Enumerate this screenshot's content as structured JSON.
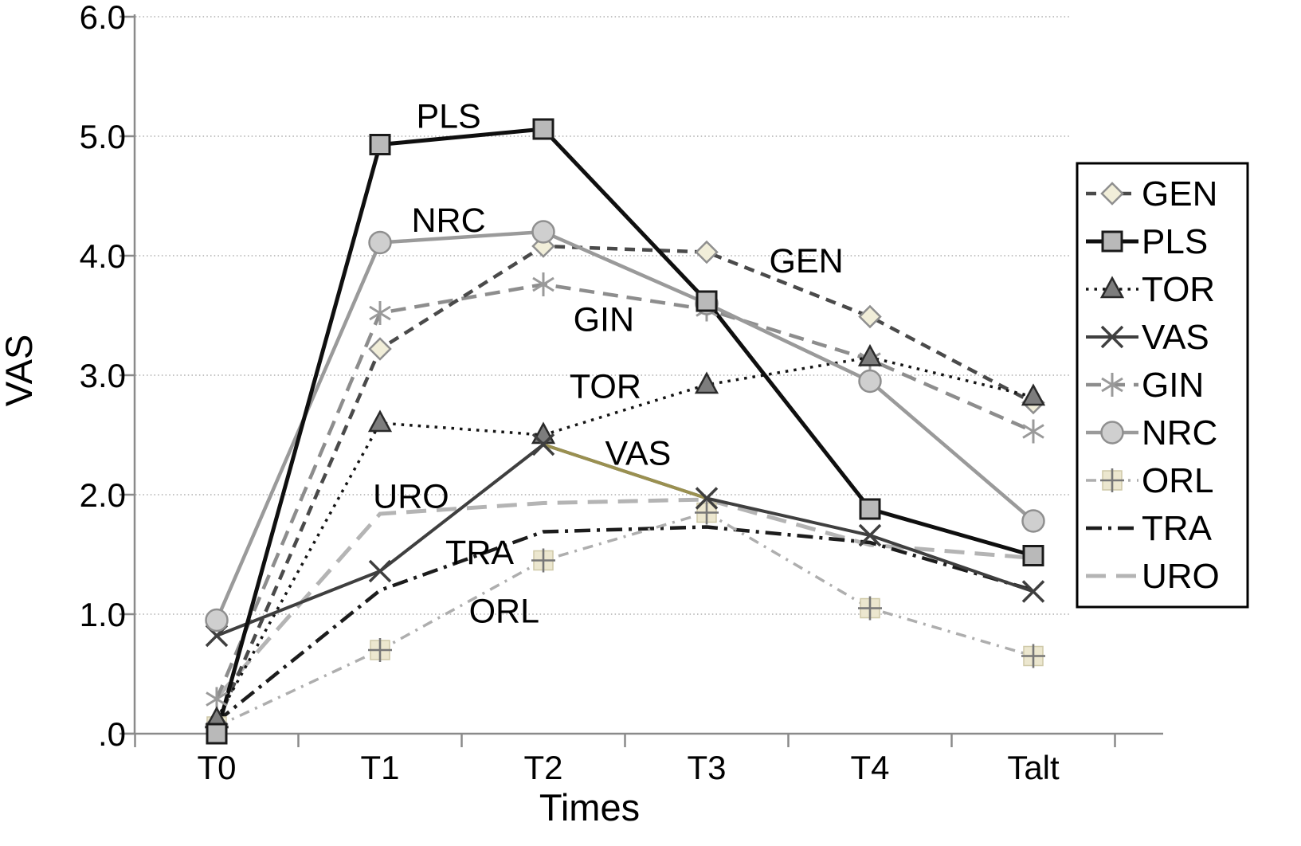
{
  "figure": {
    "ylabel": "VAS",
    "xlabel": "Times"
  },
  "chart_data": {
    "type": "line",
    "categories": [
      "T0",
      "T1",
      "T2",
      "T3",
      "T4",
      "Talt"
    ],
    "y_tick_labels": [
      "6.0",
      "5.0",
      "4.0",
      "3.0",
      "2.0",
      "1.0",
      ".0"
    ],
    "ylim": [
      0,
      6
    ],
    "grid": "horizontal dotted",
    "legend_position": "right",
    "title": "",
    "xlabel": "Times",
    "ylabel": "VAS",
    "series": [
      {
        "name": "GEN",
        "values": [
          0.08,
          3.22,
          4.08,
          4.03,
          3.49,
          2.77
        ],
        "color": "#4a4a4a",
        "dash": "13 9",
        "width": 4.5,
        "marker": "diamond",
        "marker_fill": "#f1eed9",
        "marker_stroke": "#8f8f8f"
      },
      {
        "name": "PLS",
        "values": [
          0.0,
          4.93,
          5.06,
          3.62,
          1.88,
          1.49
        ],
        "color": "#0f0f0f",
        "dash": "",
        "width": 5,
        "marker": "square",
        "marker_fill": "#b9b9b9",
        "marker_stroke": "#1a1a1a"
      },
      {
        "name": "TOR",
        "values": [
          0.12,
          2.6,
          2.5,
          2.92,
          3.15,
          2.82
        ],
        "color": "#141414",
        "dash": "3.5 7",
        "width": 3.5,
        "marker": "triangle",
        "marker_fill": "#7d7d7d",
        "marker_stroke": "#2a2a2a"
      },
      {
        "name": "VAS",
        "values": [
          0.82,
          1.36,
          2.42,
          1.97,
          1.66,
          1.19
        ],
        "color": "#3f3f3f",
        "dash": "",
        "width": 4,
        "marker": "x",
        "marker_fill": "none",
        "marker_stroke": "#3f3f3f",
        "highlight_segment": {
          "from": 2,
          "to": 3,
          "color": "#9a9050"
        }
      },
      {
        "name": "GIN",
        "values": [
          0.29,
          3.52,
          3.76,
          3.55,
          3.13,
          2.53
        ],
        "color": "#8d8d8d",
        "dash": "19 11",
        "width": 4.5,
        "marker": "asterisk",
        "marker_fill": "none",
        "marker_stroke": "#9a9a9a"
      },
      {
        "name": "NRC",
        "values": [
          0.95,
          4.11,
          4.2,
          3.6,
          2.95,
          1.78
        ],
        "color": "#9a9a9a",
        "dash": "",
        "width": 4.5,
        "marker": "circle",
        "marker_fill": "#cfcfcf",
        "marker_stroke": "#8f8f8f"
      },
      {
        "name": "ORL",
        "values": [
          0.06,
          0.7,
          1.45,
          1.85,
          1.05,
          0.65
        ],
        "color": "#aeaeae",
        "dash": "13 8 3 8",
        "width": 3.5,
        "marker": "plus-box",
        "marker_fill": "#ece7cf",
        "marker_stroke": "#777777"
      },
      {
        "name": "TRA",
        "values": [
          0.1,
          1.2,
          1.69,
          1.73,
          1.6,
          1.2
        ],
        "color": "#1c1c1c",
        "dash": "20 8 4 8",
        "width": 4.5,
        "marker": "none",
        "marker_fill": "none",
        "marker_stroke": "none"
      },
      {
        "name": "URO",
        "values": [
          0.3,
          1.84,
          1.93,
          1.96,
          1.58,
          1.47
        ],
        "color": "#b4b4b4",
        "dash": "25 13",
        "width": 5,
        "marker": "none",
        "marker_fill": "none",
        "marker_stroke": "none"
      }
    ],
    "legend_order": [
      "GEN",
      "PLS",
      "TOR",
      "VAS",
      "GIN",
      "NRC",
      "ORL",
      "TRA",
      "URO"
    ],
    "annotations": [
      {
        "text": "PLS",
        "cx": 1.42,
        "value": 5.17
      },
      {
        "text": "NRC",
        "cx": 1.42,
        "value": 4.3
      },
      {
        "text": "GEN",
        "cx": 3.61,
        "value": 3.96
      },
      {
        "text": "GIN",
        "cx": 2.37,
        "value": 3.47
      },
      {
        "text": "TOR",
        "cx": 2.38,
        "value": 2.91
      },
      {
        "text": "VAS",
        "cx": 2.58,
        "value": 2.35
      },
      {
        "text": "URO",
        "cx": 1.19,
        "value": 1.99
      },
      {
        "text": "TRA",
        "cx": 1.61,
        "value": 1.52
      },
      {
        "text": "ORL",
        "cx": 1.76,
        "value": 1.03
      }
    ]
  }
}
